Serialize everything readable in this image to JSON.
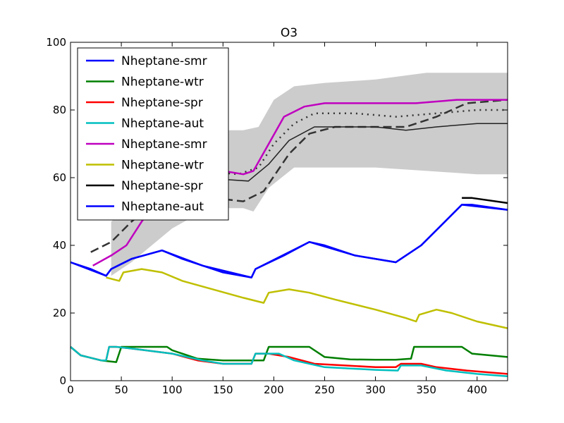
{
  "chart_data": {
    "type": "line",
    "title": "O3",
    "xlabel": "",
    "ylabel": "",
    "xlim": [
      0,
      430
    ],
    "ylim": [
      0,
      100
    ],
    "x_ticks": [
      0,
      50,
      100,
      150,
      200,
      250,
      300,
      350,
      400
    ],
    "y_ticks": [
      0,
      20,
      40,
      60,
      80,
      100
    ],
    "legend_position": "upper-left",
    "grid": false,
    "series": [
      {
        "name": "Nheptane-smr",
        "color": "#0000ff",
        "data": [
          [
            0,
            35
          ],
          [
            35,
            31
          ],
          [
            40,
            33
          ],
          [
            60,
            36
          ],
          [
            90,
            38.5
          ],
          [
            110,
            36
          ],
          [
            150,
            32
          ],
          [
            178,
            30.5
          ],
          [
            182,
            33
          ],
          [
            210,
            37
          ],
          [
            235,
            41
          ],
          [
            250,
            40
          ],
          [
            280,
            37
          ],
          [
            320,
            35
          ],
          [
            325,
            36
          ],
          [
            345,
            40
          ],
          [
            365,
            46
          ],
          [
            385,
            52
          ],
          [
            395,
            52
          ],
          [
            430,
            50.5
          ]
        ]
      },
      {
        "name": "Nheptane-wtr",
        "color": "#007f00",
        "data": [
          [
            0,
            10
          ],
          [
            10,
            7.5
          ],
          [
            30,
            6
          ],
          [
            45,
            5.5
          ],
          [
            50,
            10
          ],
          [
            60,
            10
          ],
          [
            95,
            10
          ],
          [
            100,
            9
          ],
          [
            125,
            6.5
          ],
          [
            150,
            6
          ],
          [
            175,
            6
          ],
          [
            190,
            6
          ],
          [
            195,
            10
          ],
          [
            235,
            10
          ],
          [
            250,
            7
          ],
          [
            275,
            6.3
          ],
          [
            300,
            6.2
          ],
          [
            320,
            6.2
          ],
          [
            335,
            6.5
          ],
          [
            338,
            10
          ],
          [
            385,
            10
          ],
          [
            395,
            8
          ],
          [
            430,
            7
          ]
        ]
      },
      {
        "name": "Nheptane-spr",
        "color": "#ff0000",
        "data": [
          [
            0,
            10
          ],
          [
            10,
            7.5
          ],
          [
            30,
            6
          ],
          [
            35,
            6
          ],
          [
            38,
            10
          ],
          [
            45,
            10
          ],
          [
            60,
            9.5
          ],
          [
            100,
            8
          ],
          [
            125,
            6
          ],
          [
            150,
            5
          ],
          [
            178,
            5
          ],
          [
            182,
            8
          ],
          [
            195,
            8
          ],
          [
            215,
            7
          ],
          [
            240,
            5
          ],
          [
            270,
            4.5
          ],
          [
            300,
            4
          ],
          [
            320,
            4
          ],
          [
            325,
            5
          ],
          [
            345,
            5
          ],
          [
            360,
            4
          ],
          [
            390,
            3
          ],
          [
            430,
            2
          ]
        ]
      },
      {
        "name": "Nheptane-aut",
        "color": "#00bfbf",
        "data": [
          [
            0,
            10
          ],
          [
            10,
            7.5
          ],
          [
            30,
            6
          ],
          [
            35,
            6
          ],
          [
            38,
            10
          ],
          [
            45,
            10
          ],
          [
            60,
            9.5
          ],
          [
            100,
            8
          ],
          [
            130,
            6
          ],
          [
            150,
            5
          ],
          [
            178,
            5
          ],
          [
            182,
            8
          ],
          [
            205,
            8
          ],
          [
            220,
            6
          ],
          [
            250,
            4
          ],
          [
            300,
            3.2
          ],
          [
            322,
            3
          ],
          [
            325,
            4.5
          ],
          [
            345,
            4.5
          ],
          [
            370,
            3
          ],
          [
            400,
            2
          ],
          [
            430,
            1.3
          ]
        ]
      },
      {
        "name": "Nheptane-smr",
        "color": "#bf00bf",
        "data": [
          [
            22,
            34
          ],
          [
            40,
            37
          ],
          [
            55,
            40
          ],
          [
            70,
            47
          ],
          [
            90,
            55
          ],
          [
            110,
            60
          ],
          [
            130,
            62
          ],
          [
            150,
            62
          ],
          [
            170,
            61
          ],
          [
            180,
            62
          ],
          [
            195,
            70
          ],
          [
            210,
            78
          ],
          [
            230,
            81
          ],
          [
            250,
            82
          ],
          [
            300,
            82
          ],
          [
            340,
            82
          ],
          [
            380,
            83
          ],
          [
            430,
            83
          ]
        ]
      },
      {
        "name": "Nheptane-wtr",
        "color": "#bfbf00",
        "data": [
          [
            35,
            30.5
          ],
          [
            48,
            29.5
          ],
          [
            52,
            32
          ],
          [
            70,
            33
          ],
          [
            90,
            32
          ],
          [
            110,
            29.5
          ],
          [
            140,
            27
          ],
          [
            170,
            24.5
          ],
          [
            190,
            23
          ],
          [
            195,
            26
          ],
          [
            215,
            27
          ],
          [
            235,
            26
          ],
          [
            260,
            24
          ],
          [
            300,
            21
          ],
          [
            330,
            18.5
          ],
          [
            340,
            17.5
          ],
          [
            343,
            19.5
          ],
          [
            360,
            21
          ],
          [
            375,
            20
          ],
          [
            400,
            17.5
          ],
          [
            430,
            15.5
          ]
        ]
      },
      {
        "name": "Nheptane-spr",
        "color": "#000000",
        "data": [
          [
            385,
            54
          ],
          [
            395,
            54
          ],
          [
            430,
            52.5
          ]
        ]
      },
      {
        "name": "Nheptane-aut",
        "color": "#0000ff",
        "data": [
          [
            0,
            35
          ],
          [
            20,
            33
          ],
          [
            35,
            31
          ],
          [
            40,
            33
          ],
          [
            60,
            36
          ],
          [
            90,
            38.5
          ],
          [
            130,
            34
          ],
          [
            178,
            30.5
          ],
          [
            182,
            33
          ],
          [
            235,
            41
          ],
          [
            280,
            37
          ],
          [
            320,
            35
          ],
          [
            345,
            40
          ],
          [
            385,
            52
          ],
          [
            430,
            50.5
          ]
        ]
      }
    ],
    "background_envelope": {
      "color": "#cccccc",
      "upper": [
        [
          40,
          47
        ],
        [
          60,
          52
        ],
        [
          80,
          60
        ],
        [
          100,
          69
        ],
        [
          120,
          73
        ],
        [
          150,
          74
        ],
        [
          170,
          74
        ],
        [
          185,
          75
        ],
        [
          200,
          83
        ],
        [
          220,
          87
        ],
        [
          250,
          88
        ],
        [
          300,
          89
        ],
        [
          350,
          91
        ],
        [
          400,
          91
        ],
        [
          430,
          91
        ]
      ],
      "lower": [
        [
          40,
          31
        ],
        [
          60,
          35
        ],
        [
          80,
          40
        ],
        [
          100,
          45
        ],
        [
          130,
          50
        ],
        [
          150,
          51
        ],
        [
          170,
          51
        ],
        [
          180,
          50
        ],
        [
          195,
          57
        ],
        [
          220,
          63
        ],
        [
          250,
          63
        ],
        [
          300,
          63
        ],
        [
          350,
          62
        ],
        [
          400,
          61
        ],
        [
          430,
          61
        ]
      ]
    },
    "background_lines": [
      {
        "style": "dotted",
        "color": "#333333",
        "data": [
          [
            70,
            53
          ],
          [
            100,
            60
          ],
          [
            130,
            62
          ],
          [
            165,
            61
          ],
          [
            185,
            63
          ],
          [
            200,
            70
          ],
          [
            220,
            76
          ],
          [
            240,
            79
          ],
          [
            280,
            79
          ],
          [
            320,
            78
          ],
          [
            360,
            79
          ],
          [
            400,
            80
          ],
          [
            430,
            80
          ]
        ]
      },
      {
        "style": "dashed",
        "color": "#333333",
        "data": [
          [
            20,
            38
          ],
          [
            40,
            41
          ],
          [
            60,
            47
          ],
          [
            80,
            52
          ],
          [
            110,
            55
          ],
          [
            140,
            54
          ],
          [
            170,
            53
          ],
          [
            190,
            56
          ],
          [
            215,
            67
          ],
          [
            235,
            73
          ],
          [
            260,
            75
          ],
          [
            300,
            75
          ],
          [
            330,
            75
          ],
          [
            360,
            78
          ],
          [
            390,
            82
          ],
          [
            430,
            83
          ]
        ]
      },
      {
        "style": "solid",
        "color": "#222222",
        "data": [
          [
            120,
            59
          ],
          [
            150,
            59.5
          ],
          [
            175,
            59
          ],
          [
            195,
            64
          ],
          [
            215,
            71
          ],
          [
            240,
            75
          ],
          [
            300,
            75
          ],
          [
            330,
            74
          ],
          [
            360,
            75
          ],
          [
            400,
            76
          ],
          [
            430,
            76
          ]
        ]
      }
    ]
  }
}
